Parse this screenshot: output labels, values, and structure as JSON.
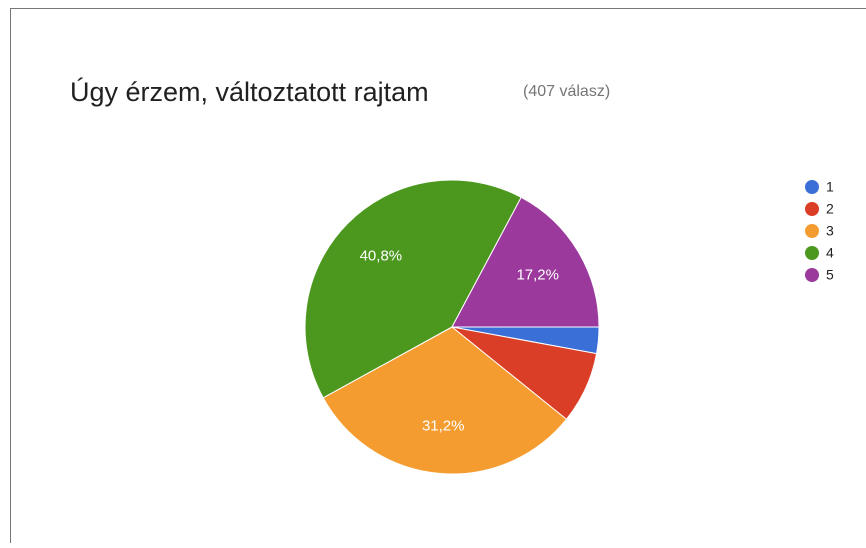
{
  "chart_data": {
    "type": "pie",
    "title": "Úgy érzem, változtatott rajtam",
    "subtitle": "(407 válasz)",
    "categories": [
      "1",
      "2",
      "3",
      "4",
      "5"
    ],
    "values": [
      2.9,
      7.9,
      31.2,
      40.8,
      17.2
    ],
    "value_labels": [
      null,
      null,
      "31,2%",
      "40,8%",
      "17,2%"
    ],
    "colors": [
      "#3a6fd8",
      "#db3e27",
      "#f59c30",
      "#4c981e",
      "#9b3a9c"
    ],
    "legend": "right"
  }
}
